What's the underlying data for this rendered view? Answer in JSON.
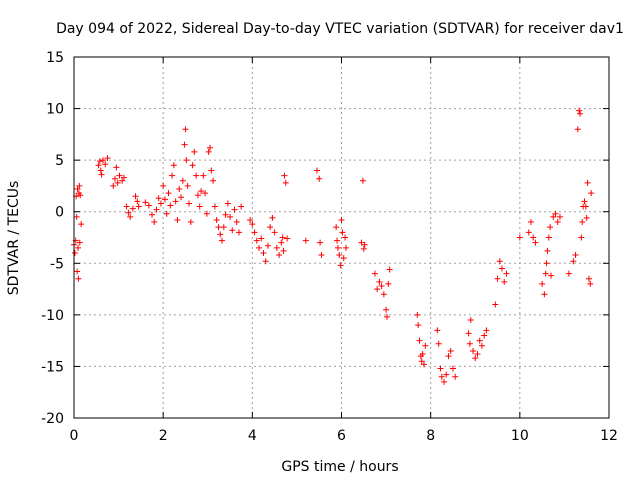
{
  "chart_data": {
    "type": "scatter",
    "title": "Day 094 of 2022, Sidereal Day-to-day VTEC variation (SDTVAR) for receiver dav1",
    "xlabel": "GPS time / hours",
    "ylabel": "SDTVAR / TECUs",
    "xlim": [
      0,
      12
    ],
    "ylim": [
      -20,
      15
    ],
    "xticks": [
      0,
      2,
      4,
      6,
      8,
      10,
      12
    ],
    "yticks": [
      15,
      10,
      5,
      0,
      -5,
      -10,
      -15,
      -20
    ],
    "grid": true,
    "marker": "+",
    "colors": {
      "points": "#ff0000",
      "grid": "#a0a0a0",
      "axes": "#000000"
    },
    "series": [
      {
        "name": "dav1",
        "points": [
          [
            0.0,
            -3.2
          ],
          [
            0.02,
            -4.0
          ],
          [
            0.04,
            -2.8
          ],
          [
            0.05,
            1.5
          ],
          [
            0.06,
            -0.5
          ],
          [
            0.07,
            -5.8
          ],
          [
            0.08,
            2.2
          ],
          [
            0.09,
            -3.5
          ],
          [
            0.1,
            -6.5
          ],
          [
            0.11,
            1.8
          ],
          [
            0.12,
            2.5
          ],
          [
            0.13,
            -3.0
          ],
          [
            0.14,
            1.6
          ],
          [
            0.16,
            -1.2
          ],
          [
            0.55,
            4.5
          ],
          [
            0.58,
            4.9
          ],
          [
            0.6,
            4.0
          ],
          [
            0.62,
            3.6
          ],
          [
            0.65,
            5.0
          ],
          [
            0.7,
            4.6
          ],
          [
            0.75,
            5.2
          ],
          [
            0.88,
            2.5
          ],
          [
            0.92,
            3.2
          ],
          [
            0.95,
            4.3
          ],
          [
            0.98,
            2.8
          ],
          [
            1.02,
            3.5
          ],
          [
            1.08,
            3.0
          ],
          [
            1.12,
            3.3
          ],
          [
            1.18,
            0.5
          ],
          [
            1.22,
            -0.1
          ],
          [
            1.26,
            -0.5
          ],
          [
            1.32,
            0.3
          ],
          [
            1.38,
            1.5
          ],
          [
            1.42,
            1.0
          ],
          [
            1.45,
            0.5
          ],
          [
            1.6,
            0.9
          ],
          [
            1.68,
            0.6
          ],
          [
            1.75,
            -0.3
          ],
          [
            1.8,
            -1.0
          ],
          [
            1.85,
            0.2
          ],
          [
            1.9,
            1.3
          ],
          [
            1.95,
            0.8
          ],
          [
            2.0,
            2.5
          ],
          [
            2.04,
            1.2
          ],
          [
            2.08,
            -0.2
          ],
          [
            2.12,
            1.8
          ],
          [
            2.16,
            0.6
          ],
          [
            2.2,
            3.5
          ],
          [
            2.24,
            4.5
          ],
          [
            2.28,
            1.0
          ],
          [
            2.32,
            -0.8
          ],
          [
            2.36,
            2.2
          ],
          [
            2.4,
            1.4
          ],
          [
            2.44,
            3.0
          ],
          [
            2.48,
            6.5
          ],
          [
            2.5,
            8.0
          ],
          [
            2.52,
            5.0
          ],
          [
            2.55,
            2.5
          ],
          [
            2.58,
            0.8
          ],
          [
            2.62,
            -1.0
          ],
          [
            2.66,
            4.5
          ],
          [
            2.7,
            5.8
          ],
          [
            2.74,
            3.5
          ],
          [
            2.78,
            1.6
          ],
          [
            2.82,
            0.5
          ],
          [
            2.85,
            2.0
          ],
          [
            2.9,
            3.5
          ],
          [
            2.94,
            1.8
          ],
          [
            2.98,
            -0.2
          ],
          [
            3.02,
            5.8
          ],
          [
            3.05,
            6.2
          ],
          [
            3.08,
            4.0
          ],
          [
            3.12,
            3.0
          ],
          [
            3.16,
            0.5
          ],
          [
            3.2,
            -0.8
          ],
          [
            3.24,
            -1.5
          ],
          [
            3.28,
            -2.2
          ],
          [
            3.32,
            -2.8
          ],
          [
            3.36,
            -1.5
          ],
          [
            3.4,
            -0.3
          ],
          [
            3.45,
            0.8
          ],
          [
            3.5,
            -0.5
          ],
          [
            3.55,
            -1.8
          ],
          [
            3.6,
            0.2
          ],
          [
            3.65,
            -1.0
          ],
          [
            3.7,
            -2.0
          ],
          [
            3.75,
            0.5
          ],
          [
            3.95,
            -0.8
          ],
          [
            4.0,
            -1.2
          ],
          [
            4.05,
            -2.0
          ],
          [
            4.1,
            -2.8
          ],
          [
            4.15,
            -3.5
          ],
          [
            4.2,
            -2.6
          ],
          [
            4.25,
            -4.0
          ],
          [
            4.3,
            -4.8
          ],
          [
            4.35,
            -3.3
          ],
          [
            4.4,
            -1.5
          ],
          [
            4.45,
            -0.6
          ],
          [
            4.5,
            -2.0
          ],
          [
            4.55,
            -3.5
          ],
          [
            4.6,
            -4.2
          ],
          [
            4.65,
            -3.0
          ],
          [
            4.68,
            -2.5
          ],
          [
            4.7,
            -3.8
          ],
          [
            4.72,
            3.5
          ],
          [
            4.75,
            2.8
          ],
          [
            4.78,
            -2.6
          ],
          [
            5.2,
            -2.8
          ],
          [
            5.45,
            4.0
          ],
          [
            5.5,
            3.2
          ],
          [
            5.52,
            -3.0
          ],
          [
            5.55,
            -4.2
          ],
          [
            5.88,
            -1.5
          ],
          [
            5.9,
            -2.8
          ],
          [
            5.92,
            -3.5
          ],
          [
            5.95,
            -4.2
          ],
          [
            5.98,
            -5.2
          ],
          [
            6.0,
            -0.8
          ],
          [
            6.02,
            -2.0
          ],
          [
            6.05,
            -4.5
          ],
          [
            6.08,
            -2.5
          ],
          [
            6.1,
            -3.5
          ],
          [
            6.45,
            -3.0
          ],
          [
            6.48,
            3.0
          ],
          [
            6.5,
            -3.6
          ],
          [
            6.52,
            -3.2
          ],
          [
            6.75,
            -6.0
          ],
          [
            6.8,
            -7.5
          ],
          [
            6.85,
            -6.8
          ],
          [
            6.9,
            -7.2
          ],
          [
            6.95,
            -8.0
          ],
          [
            7.0,
            -9.5
          ],
          [
            7.02,
            -10.2
          ],
          [
            7.05,
            -7.0
          ],
          [
            7.08,
            -5.6
          ],
          [
            7.7,
            -10.0
          ],
          [
            7.72,
            -11.0
          ],
          [
            7.75,
            -12.5
          ],
          [
            7.78,
            -14.0
          ],
          [
            7.8,
            -14.5
          ],
          [
            7.82,
            -13.8
          ],
          [
            7.85,
            -14.8
          ],
          [
            7.88,
            -13.0
          ],
          [
            8.15,
            -11.5
          ],
          [
            8.18,
            -12.8
          ],
          [
            8.22,
            -15.2
          ],
          [
            8.25,
            -16.0
          ],
          [
            8.3,
            -16.5
          ],
          [
            8.35,
            -15.8
          ],
          [
            8.4,
            -14.0
          ],
          [
            8.45,
            -13.5
          ],
          [
            8.5,
            -15.2
          ],
          [
            8.55,
            -16.0
          ],
          [
            8.85,
            -11.8
          ],
          [
            8.88,
            -12.8
          ],
          [
            8.9,
            -10.5
          ],
          [
            8.95,
            -13.5
          ],
          [
            9.0,
            -14.2
          ],
          [
            9.05,
            -13.8
          ],
          [
            9.1,
            -12.5
          ],
          [
            9.15,
            -13.0
          ],
          [
            9.2,
            -12.0
          ],
          [
            9.25,
            -11.5
          ],
          [
            9.45,
            -9.0
          ],
          [
            9.5,
            -6.5
          ],
          [
            9.55,
            -4.8
          ],
          [
            9.6,
            -5.5
          ],
          [
            9.65,
            -6.8
          ],
          [
            9.7,
            -6.0
          ],
          [
            10.0,
            -2.5
          ],
          [
            10.2,
            -2.0
          ],
          [
            10.25,
            -1.0
          ],
          [
            10.3,
            -2.5
          ],
          [
            10.35,
            -3.0
          ],
          [
            10.5,
            -7.0
          ],
          [
            10.55,
            -8.0
          ],
          [
            10.58,
            -6.0
          ],
          [
            10.6,
            -5.0
          ],
          [
            10.62,
            -3.8
          ],
          [
            10.65,
            -2.5
          ],
          [
            10.68,
            -1.5
          ],
          [
            10.7,
            -6.2
          ],
          [
            10.75,
            -0.5
          ],
          [
            10.8,
            -0.2
          ],
          [
            10.85,
            -1.0
          ],
          [
            10.9,
            -0.5
          ],
          [
            11.1,
            -6.0
          ],
          [
            11.2,
            -4.8
          ],
          [
            11.25,
            -4.2
          ],
          [
            11.3,
            8.0
          ],
          [
            11.33,
            9.8
          ],
          [
            11.35,
            9.5
          ],
          [
            11.38,
            -2.5
          ],
          [
            11.4,
            -1.0
          ],
          [
            11.42,
            0.5
          ],
          [
            11.45,
            1.0
          ],
          [
            11.48,
            0.5
          ],
          [
            11.5,
            -0.6
          ],
          [
            11.52,
            2.8
          ],
          [
            11.55,
            -6.5
          ],
          [
            11.58,
            -7.0
          ],
          [
            11.6,
            1.8
          ]
        ]
      }
    ]
  }
}
